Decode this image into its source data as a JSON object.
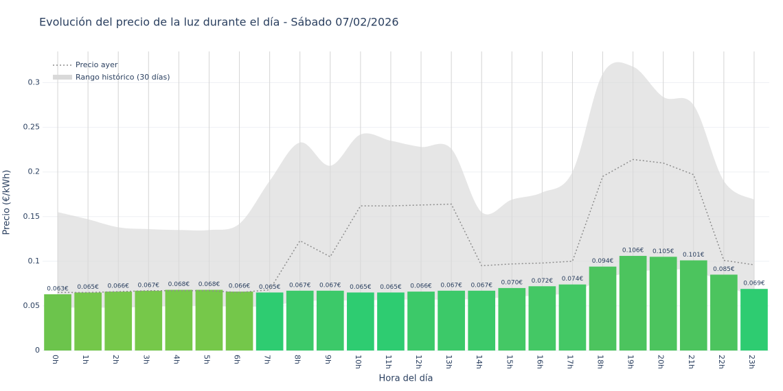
{
  "chart_data": {
    "type": "bar",
    "title": "Evolución del precio de la luz durante el día - Sábado 07/02/2026",
    "x_label": "Hora del día",
    "y_label": "Precio (€/kWh)",
    "categories": [
      "0h",
      "1h",
      "2h",
      "3h",
      "4h",
      "5h",
      "6h",
      "7h",
      "8h",
      "9h",
      "10h",
      "11h",
      "12h",
      "13h",
      "14h",
      "15h",
      "16h",
      "17h",
      "18h",
      "19h",
      "20h",
      "21h",
      "22h",
      "23h"
    ],
    "values": [
      0.063,
      0.065,
      0.066,
      0.067,
      0.068,
      0.068,
      0.066,
      0.065,
      0.067,
      0.067,
      0.065,
      0.065,
      0.066,
      0.067,
      0.067,
      0.07,
      0.072,
      0.074,
      0.094,
      0.106,
      0.105,
      0.101,
      0.085,
      0.069
    ],
    "value_labels": [
      "0.063€",
      "0.065€",
      "0.066€",
      "0.067€",
      "0.068€",
      "0.068€",
      "0.066€",
      "0.065€",
      "0.067€",
      "0.067€",
      "0.065€",
      "0.065€",
      "0.066€",
      "0.067€",
      "0.067€",
      "0.070€",
      "0.072€",
      "0.074€",
      "0.094€",
      "0.106€",
      "0.105€",
      "0.101€",
      "0.085€",
      "0.069€"
    ],
    "colors": [
      "#6cc44c",
      "#74c74a",
      "#76c84a",
      "#76c84a",
      "#76c84a",
      "#76c84a",
      "#74c74a",
      "#2ecc71",
      "#3cc969",
      "#3cc969",
      "#2ecc71",
      "#2ecc71",
      "#3cc969",
      "#3cc969",
      "#3cc969",
      "#44c865",
      "#44c865",
      "#44c865",
      "#4cc45e",
      "#4cc45e",
      "#4cc45e",
      "#4cc45e",
      "#4cc45e",
      "#2ecc71"
    ],
    "line": {
      "name": "Precio ayer",
      "color": "#8c8c8c",
      "values": [
        0.065,
        0.065,
        0.066,
        0.067,
        0.067,
        0.067,
        0.065,
        0.068,
        0.123,
        0.105,
        0.162,
        0.162,
        0.163,
        0.164,
        0.095,
        0.097,
        0.098,
        0.1,
        0.195,
        0.214,
        0.21,
        0.197,
        0.101,
        0.096
      ]
    },
    "band": {
      "name": "Rango histórico (30 días)",
      "color": "#d9d9d9",
      "upper": [
        0.155,
        0.147,
        0.138,
        0.136,
        0.135,
        0.135,
        0.142,
        0.19,
        0.233,
        0.207,
        0.242,
        0.235,
        0.228,
        0.226,
        0.155,
        0.169,
        0.177,
        0.2,
        0.31,
        0.318,
        0.284,
        0.275,
        0.19,
        0.169
      ],
      "lower": [
        0.048,
        0.048,
        0.048,
        0.049,
        0.05,
        0.05,
        0.049,
        0.05,
        0.055,
        0.056,
        0.056,
        0.057,
        0.057,
        0.057,
        0.058,
        0.06,
        0.062,
        0.065,
        0.08,
        0.088,
        0.09,
        0.09,
        0.075,
        0.058
      ]
    },
    "ylim": [
      0,
      0.335
    ],
    "yticks": [
      0,
      0.05,
      0.1,
      0.15,
      0.2,
      0.25,
      0.3
    ],
    "grid": true,
    "legend": "top-left"
  }
}
